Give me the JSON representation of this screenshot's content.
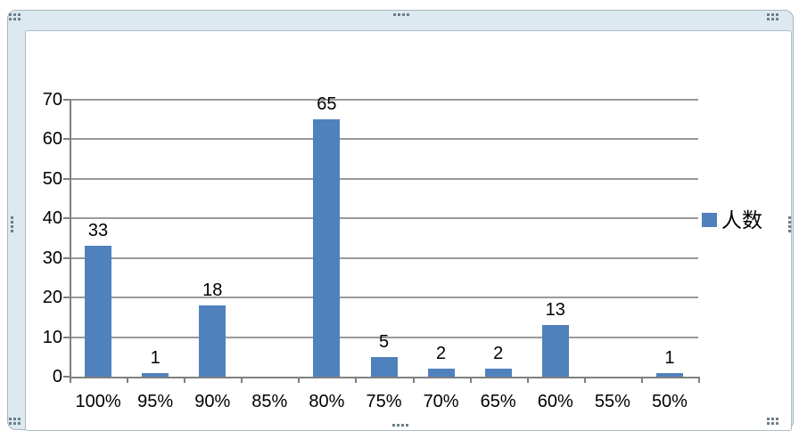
{
  "chart_data": {
    "type": "bar",
    "title": "",
    "xlabel": "",
    "ylabel": "",
    "categories": [
      "100%",
      "95%",
      "90%",
      "85%",
      "80%",
      "75%",
      "70%",
      "65%",
      "60%",
      "55%",
      "50%"
    ],
    "series": [
      {
        "name": "人数",
        "values": [
          33,
          1,
          18,
          0,
          65,
          5,
          2,
          2,
          13,
          0,
          1
        ]
      }
    ],
    "data_labels": [
      "33",
      "1",
      "18",
      "",
      "65",
      "5",
      "2",
      "2",
      "13",
      "",
      "1"
    ],
    "ylim": [
      0,
      70
    ],
    "yticks": [
      0,
      10,
      20,
      30,
      40,
      50,
      60,
      70
    ],
    "grid": true,
    "legend_position": "right",
    "bar_color": "#4F81BD"
  },
  "legend": {
    "label": "人数"
  },
  "colors": {
    "bar": "#4F81BD",
    "gridline": "#9a9a9a",
    "axis": "#7f7f7f",
    "text": "#000000",
    "selection_band": "#dce9f0",
    "selection_edge": "#a9b6bd",
    "handle_dot": "#6b7e8a"
  }
}
